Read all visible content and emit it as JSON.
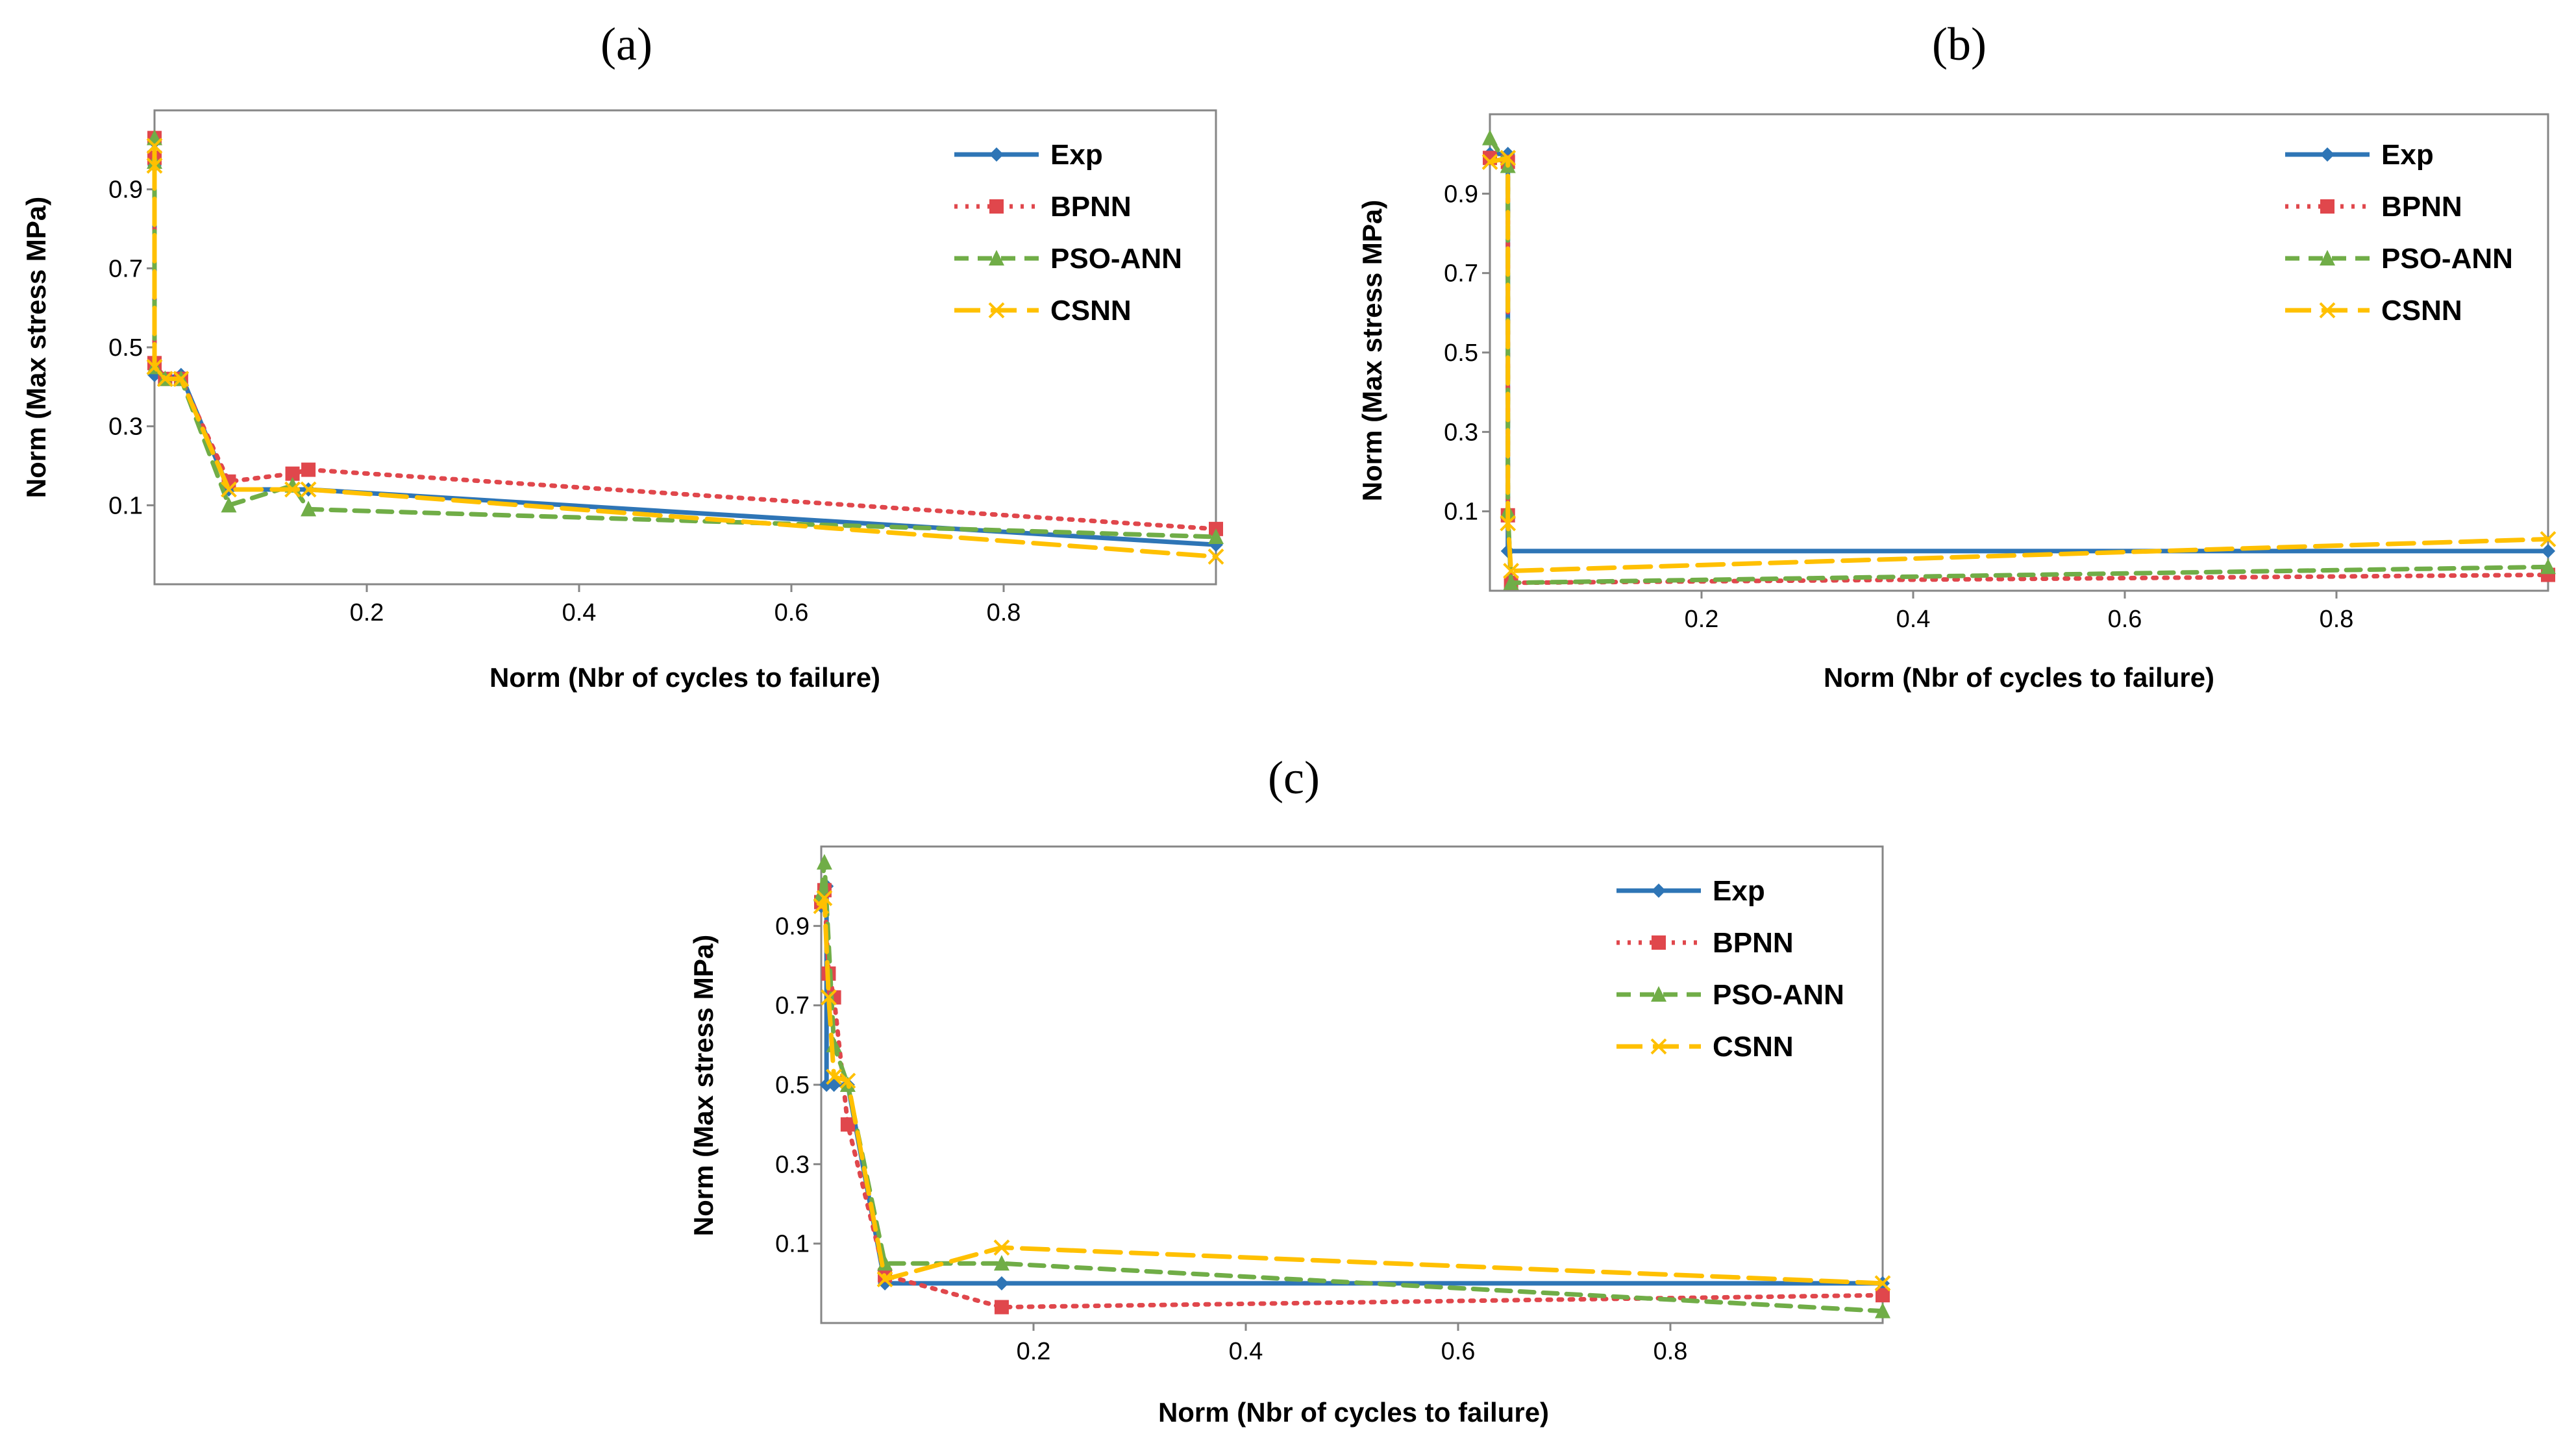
{
  "chart_data": [
    {
      "type": "line",
      "title": "(a)",
      "xlabel": "Norm (Nbr of cycles to failure)",
      "ylabel": "Norm (Max stress MPa)",
      "xlim": [
        0,
        1
      ],
      "ylim": [
        -0.1,
        1.1
      ],
      "xticks": [
        0.2,
        0.4,
        0.6,
        0.8
      ],
      "yticks": [
        0.1,
        0.3,
        0.5,
        0.7,
        0.9
      ],
      "legend": "top-right",
      "series": [
        {
          "name": "Exp",
          "color": "#2e75b6",
          "dash": "",
          "marker": "diamond",
          "x": [
            0,
            0,
            0,
            0.01,
            0.025,
            0.07,
            0.145,
            1.0
          ],
          "y": [
            0.96,
            1.02,
            0.43,
            0.42,
            0.43,
            0.14,
            0.14,
            0.0
          ]
        },
        {
          "name": "BPNN",
          "color": "#e0474c",
          "dash": "5,12",
          "marker": "square",
          "x": [
            0,
            0,
            0,
            0.01,
            0.025,
            0.07,
            0.13,
            0.145,
            1.0
          ],
          "y": [
            0.98,
            1.03,
            0.46,
            0.42,
            0.42,
            0.16,
            0.18,
            0.19,
            0.04
          ]
        },
        {
          "name": "PSO-ANN",
          "color": "#70ad47",
          "dash": "22,14",
          "marker": "triangle",
          "x": [
            0,
            0,
            0,
            0.01,
            0.025,
            0.07,
            0.13,
            0.145,
            1.0
          ],
          "y": [
            0.97,
            1.03,
            0.45,
            0.42,
            0.42,
            0.1,
            0.15,
            0.09,
            0.02
          ]
        },
        {
          "name": "CSNN",
          "color": "#ffc000",
          "dash": "40,16",
          "marker": "x",
          "x": [
            0,
            0,
            0,
            0.01,
            0.025,
            0.07,
            0.13,
            0.145,
            1.0
          ],
          "y": [
            0.96,
            1.01,
            0.45,
            0.42,
            0.42,
            0.14,
            0.14,
            0.14,
            -0.03
          ]
        }
      ]
    },
    {
      "type": "line",
      "title": "(b)",
      "xlabel": "Norm (Nbr of cycles to failure)",
      "ylabel": "Norm (Max stress  MPa)",
      "xlim": [
        0,
        1
      ],
      "ylim": [
        -0.1,
        1.1
      ],
      "xticks": [
        0.2,
        0.4,
        0.6,
        0.8
      ],
      "yticks": [
        0.1,
        0.3,
        0.5,
        0.7,
        0.9
      ],
      "legend": "top-right",
      "series": [
        {
          "name": "Exp",
          "color": "#2e75b6",
          "dash": "",
          "marker": "diamond",
          "x": [
            0,
            0.017,
            0.017,
            1.0
          ],
          "y": [
            1.0,
            1.0,
            0.0,
            0.0
          ]
        },
        {
          "name": "BPNN",
          "color": "#e0474c",
          "dash": "5,12",
          "marker": "square",
          "x": [
            0,
            0.017,
            0.017,
            0.02,
            1.0
          ],
          "y": [
            0.99,
            0.98,
            0.09,
            -0.08,
            -0.06
          ]
        },
        {
          "name": "PSO-ANN",
          "color": "#70ad47",
          "dash": "22,14",
          "marker": "triangle",
          "x": [
            0,
            0.017,
            0.017,
            0.02,
            1.0
          ],
          "y": [
            1.04,
            0.97,
            0.1,
            -0.08,
            -0.04
          ]
        },
        {
          "name": "CSNN",
          "color": "#ffc000",
          "dash": "40,16",
          "marker": "x",
          "x": [
            0,
            0.017,
            0.017,
            0.02,
            1.0
          ],
          "y": [
            0.98,
            0.99,
            0.07,
            -0.05,
            0.03
          ]
        }
      ]
    },
    {
      "type": "line",
      "title": "(c)",
      "xlabel": "Norm (Nbr of cycles to failure)",
      "ylabel": "Norm (Max stress MPa)",
      "xlim": [
        0,
        1
      ],
      "ylim": [
        -0.1,
        1.1
      ],
      "xticks": [
        0.2,
        0.4,
        0.6,
        0.8
      ],
      "yticks": [
        0.1,
        0.3,
        0.5,
        0.7,
        0.9
      ],
      "legend": "top-right",
      "series": [
        {
          "name": "Exp",
          "color": "#2e75b6",
          "dash": "",
          "marker": "diamond",
          "x": [
            0,
            0.005,
            0.005,
            0.012,
            0.025,
            0.06,
            0.17,
            1.0
          ],
          "y": [
            0.95,
            1.0,
            0.5,
            0.5,
            0.5,
            0.0,
            0.0,
            0.0
          ]
        },
        {
          "name": "BPNN",
          "color": "#e0474c",
          "dash": "5,12",
          "marker": "square",
          "x": [
            0,
            0.003,
            0.007,
            0.012,
            0.025,
            0.06,
            0.17,
            1.0
          ],
          "y": [
            0.96,
            0.99,
            0.78,
            0.72,
            0.4,
            0.02,
            -0.06,
            -0.03
          ]
        },
        {
          "name": "PSO-ANN",
          "color": "#70ad47",
          "dash": "22,14",
          "marker": "triangle",
          "x": [
            0,
            0.003,
            0.012,
            0.025,
            0.06,
            0.17,
            1.0
          ],
          "y": [
            0.98,
            1.06,
            0.6,
            0.5,
            0.05,
            0.05,
            -0.07
          ]
        },
        {
          "name": "CSNN",
          "color": "#ffc000",
          "dash": "40,16",
          "marker": "x",
          "x": [
            0,
            0.003,
            0.007,
            0.012,
            0.025,
            0.06,
            0.17,
            1.0
          ],
          "y": [
            0.95,
            0.97,
            0.72,
            0.52,
            0.51,
            0.01,
            0.09,
            0.0
          ]
        }
      ]
    }
  ]
}
